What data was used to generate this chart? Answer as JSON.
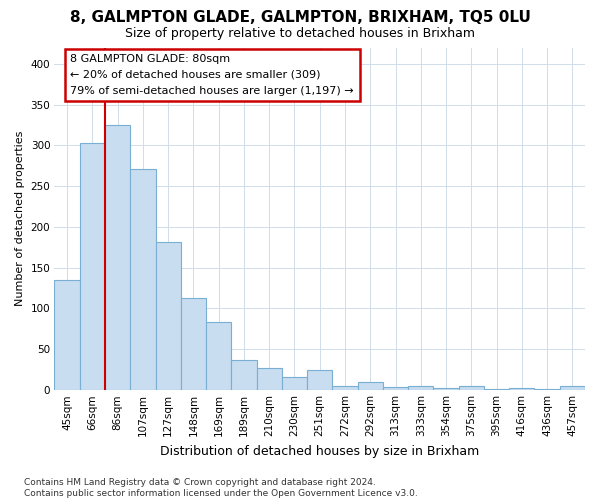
{
  "title": "8, GALMPTON GLADE, GALMPTON, BRIXHAM, TQ5 0LU",
  "subtitle": "Size of property relative to detached houses in Brixham",
  "xlabel": "Distribution of detached houses by size in Brixham",
  "ylabel": "Number of detached properties",
  "bar_color": "#c8ddf0",
  "bar_edge_color": "#7aafd4",
  "vline_color": "#cc0000",
  "vline_x_index": 2,
  "annotation_text": "8 GALMPTON GLADE: 80sqm\n← 20% of detached houses are smaller (309)\n79% of semi-detached houses are larger (1,197) →",
  "annotation_box_color": "#ffffff",
  "annotation_box_edge_color": "#cc0000",
  "footnote": "Contains HM Land Registry data © Crown copyright and database right 2024.\nContains public sector information licensed under the Open Government Licence v3.0.",
  "categories": [
    "45sqm",
    "66sqm",
    "86sqm",
    "107sqm",
    "127sqm",
    "148sqm",
    "169sqm",
    "189sqm",
    "210sqm",
    "230sqm",
    "251sqm",
    "272sqm",
    "292sqm",
    "313sqm",
    "333sqm",
    "354sqm",
    "375sqm",
    "395sqm",
    "416sqm",
    "436sqm",
    "457sqm"
  ],
  "values": [
    135,
    303,
    325,
    271,
    182,
    113,
    83,
    37,
    27,
    16,
    24,
    5,
    10,
    3,
    5,
    2,
    5,
    1,
    2,
    1,
    5
  ],
  "ylim": [
    0,
    420
  ],
  "yticks": [
    0,
    50,
    100,
    150,
    200,
    250,
    300,
    350,
    400
  ],
  "background_color": "#ffffff",
  "grid_color": "#d0dce8",
  "title_fontsize": 11,
  "subtitle_fontsize": 9,
  "xlabel_fontsize": 9,
  "ylabel_fontsize": 8,
  "tick_fontsize": 7.5,
  "footnote_fontsize": 6.5
}
